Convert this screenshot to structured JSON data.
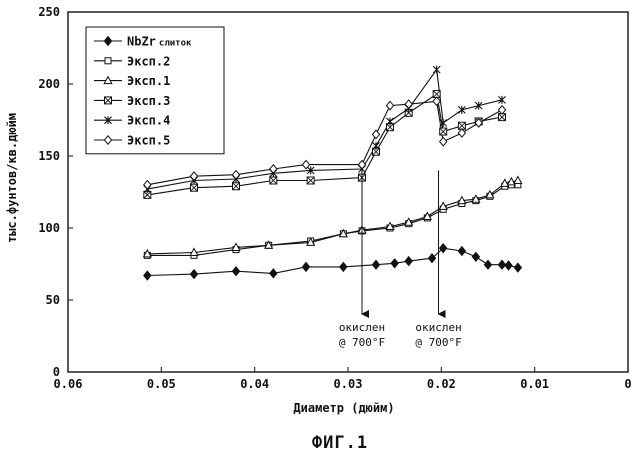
{
  "chart_data": {
    "type": "line",
    "xlabel": "Диаметр (дюйм)",
    "ylabel": "тыс.фунтов/кв.дюйм",
    "xlim": [
      0.06,
      0
    ],
    "ylim": [
      0,
      250
    ],
    "x_ticks": [
      "0.06",
      "0.05",
      "0.04",
      "0.03",
      "0.02",
      "0.01",
      "0"
    ],
    "y_ticks": [
      "0",
      "50",
      "100",
      "150",
      "200",
      "250"
    ],
    "figure_caption": "ФИГ.1",
    "legend_position": "top-left",
    "series": [
      {
        "name": "NbZr",
        "name_suffix": "слиток",
        "marker": "filled-diamond",
        "x": [
          0.0515,
          0.0465,
          0.042,
          0.038,
          0.0345,
          0.0305,
          0.027,
          0.025,
          0.0235,
          0.021,
          0.0198,
          0.0178,
          0.0163,
          0.015,
          0.0135,
          0.0128,
          0.0118
        ],
        "y": [
          67,
          68,
          70,
          68.5,
          73,
          73,
          74.5,
          75.5,
          77,
          79,
          86,
          84,
          80,
          74.5,
          74.5,
          74,
          72.5
        ]
      },
      {
        "name": "Эксп.2",
        "marker": "open-square",
        "x": [
          0.0515,
          0.0465,
          0.042,
          0.0385,
          0.034,
          0.0305,
          0.0285,
          0.0255,
          0.0235,
          0.0215,
          0.0198,
          0.0178,
          0.0163,
          0.0148,
          0.0132,
          0.0125,
          0.0118
        ],
        "y": [
          81,
          81,
          85,
          88,
          91,
          96,
          98,
          100,
          103,
          107,
          113,
          117,
          119,
          122,
          129,
          130,
          130
        ]
      },
      {
        "name": "Эксп.1",
        "marker": "open-triangle",
        "x": [
          0.0515,
          0.0465,
          0.042,
          0.0385,
          0.034,
          0.0305,
          0.0285,
          0.0255,
          0.0235,
          0.0215,
          0.0198,
          0.0178,
          0.0163,
          0.0148,
          0.0132,
          0.0125,
          0.0118
        ],
        "y": [
          82,
          83,
          86.5,
          88,
          90,
          96,
          98.5,
          101,
          104,
          108,
          115,
          119,
          120,
          123,
          131,
          132,
          133
        ]
      },
      {
        "name": "Эксп.3",
        "marker": "crossed-square",
        "x": [
          0.0515,
          0.0465,
          0.042,
          0.038,
          0.034,
          0.0285,
          0.027,
          0.0255,
          0.0235,
          0.0205,
          0.0198,
          0.0178,
          0.016,
          0.0135
        ],
        "y": [
          123,
          128,
          129,
          133,
          133,
          135,
          153,
          170,
          180,
          193,
          167,
          171,
          174,
          177
        ]
      },
      {
        "name": "Эксп.4",
        "marker": "asterisk",
        "x": [
          0.0515,
          0.0465,
          0.042,
          0.038,
          0.034,
          0.0285,
          0.027,
          0.0255,
          0.0235,
          0.0205,
          0.0198,
          0.0178,
          0.016,
          0.0135
        ],
        "y": [
          127,
          133,
          134,
          138,
          140,
          141,
          157,
          174,
          183,
          210,
          173,
          182,
          185,
          189
        ]
      },
      {
        "name": "Эксп.5",
        "marker": "open-diamond",
        "x": [
          0.0515,
          0.0465,
          0.042,
          0.038,
          0.0345,
          0.0285,
          0.027,
          0.0255,
          0.0235,
          0.0205,
          0.0198,
          0.0178,
          0.016,
          0.0135
        ],
        "y": [
          130,
          136,
          137,
          141,
          144,
          144,
          165,
          185,
          186,
          188,
          160,
          166,
          173,
          182
        ]
      }
    ],
    "annotations": [
      {
        "line1": "окислен",
        "line2": "@ 700°F",
        "x": 0.0285
      },
      {
        "line1": "окислен",
        "line2": "@ 700°F",
        "x": 0.0203
      }
    ]
  }
}
